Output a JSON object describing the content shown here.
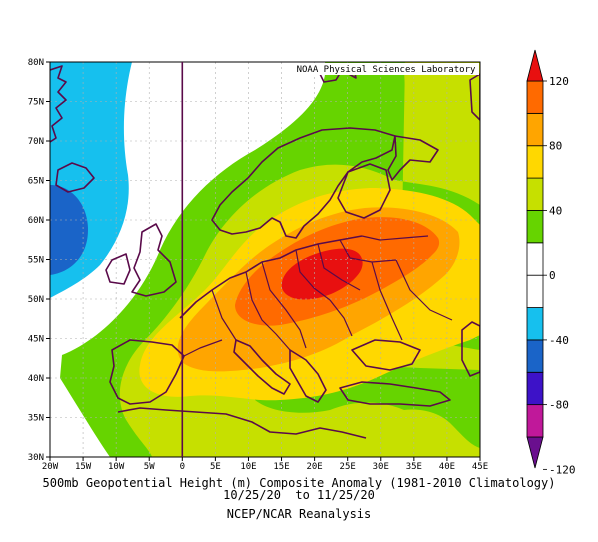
{
  "credit": "NOAA Physical Sciences Laboratory",
  "lat_labels": [
    "80N",
    "75N",
    "70N",
    "65N",
    "60N",
    "55N",
    "50N",
    "45N",
    "40N",
    "35N",
    "30N"
  ],
  "lon_labels": [
    "20W",
    "15W",
    "10W",
    "5W",
    "0",
    "5E",
    "10E",
    "15E",
    "20E",
    "25E",
    "30E",
    "35E",
    "40E",
    "45E"
  ],
  "caption": {
    "line1": "500mb Geopotential Height (m) Composite Anomaly (1981-2010 Climatology)",
    "line2": "10/25/20  to 11/25/20",
    "line3": "NCEP/NCAR Reanalysis"
  },
  "colorbar": {
    "labels": [
      "120",
      "80",
      "40",
      "0",
      "-40",
      "-80",
      "-120"
    ],
    "colors": [
      "#6a0f8e",
      "#c0189a",
      "#3d12c8",
      "#1a64c8",
      "#16c0ee",
      "#ffffff",
      "#ffffff",
      "#66d400",
      "#c6e000",
      "#ffd800",
      "#ffa500",
      "#ff6a00",
      "#e81010"
    ]
  },
  "map": {
    "extent": {
      "lon": [
        -20,
        45
      ],
      "lat": [
        30,
        80
      ]
    },
    "max_region": "Central Europe",
    "colors": {
      "lightblue": "#16c0ee",
      "blue": "#1a64c8",
      "green": "#66d400",
      "yellowgreen": "#c6e000",
      "yellow": "#ffd800",
      "orange": "#ffa500",
      "darkorange": "#ff6a00",
      "red": "#e81010",
      "coast": "#5a0a4a"
    }
  }
}
